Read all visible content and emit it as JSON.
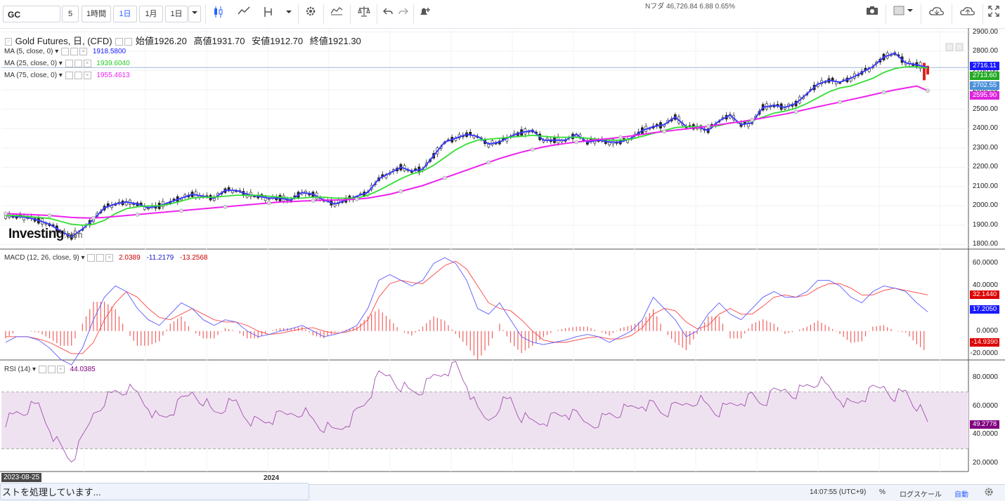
{
  "toolbar": {
    "symbol": "GC",
    "intervals": [
      "5",
      "1時間",
      "1日",
      "1月",
      "1日"
    ],
    "active_interval": 2
  },
  "ticker_top": "Nフダ    46,726.84    6.88    0.65%",
  "legend": {
    "title": "Gold Futures, 日, (CFD)",
    "ohlc": [
      {
        "label": "始値",
        "value": "1926.20"
      },
      {
        "label": "高値",
        "value": "1931.70"
      },
      {
        "label": "安値",
        "value": "1912.70"
      },
      {
        "label": "終値",
        "value": "1921.30"
      }
    ],
    "ma": [
      {
        "name": "MA (5, close, 0)",
        "value": "1918.5800",
        "color": "#1a1aff"
      },
      {
        "name": "MA (25, close, 0)",
        "value": "1939.6040",
        "color": "#22cc22"
      },
      {
        "name": "MA (75, close, 0)",
        "value": "1955.4613",
        "color": "#ee22ee"
      }
    ],
    "macd": {
      "name": "MACD (12, 26, close, 9)",
      "values": [
        "2.0389",
        "-11.2179",
        "-13.2568"
      ],
      "colors": [
        "#cc0000",
        "#1a1acc",
        "#cc0000"
      ]
    },
    "rsi": {
      "name": "RSI (14)",
      "value": "44.0385",
      "color": "#800080"
    }
  },
  "price_axis": [
    "2900.00",
    "2800.00",
    "2700.00",
    "2600.00",
    "2500.00",
    "2400.00",
    "2300.00",
    "2200.00",
    "2100.00",
    "2000.00",
    "1900.00",
    "1800.00"
  ],
  "price_tags": [
    {
      "text": "2716.11",
      "color": "#1a1aff"
    },
    {
      "text": "2713.60",
      "color": "#22aa22"
    },
    {
      "text": "2702.55",
      "color": "#4a90d9"
    },
    {
      "text": "2595.90",
      "color": "#dd22dd"
    }
  ],
  "macd_axis": [
    "60.0000",
    "40.0000",
    "0.0000",
    "-20.0000"
  ],
  "macd_tags": [
    {
      "text": "32.1440",
      "color": "#dd0000"
    },
    {
      "text": "17.2050",
      "color": "#1a1aff"
    },
    {
      "text": "-14.9390",
      "color": "#dd0000"
    }
  ],
  "rsi_axis": [
    "80.0000",
    "60.0000",
    "40.0000",
    "20.0000"
  ],
  "rsi_tag": {
    "text": "49.2778",
    "color": "#800080"
  },
  "x_labels": {
    "start_date": "2023-08-25",
    "year": "2024"
  },
  "watermark": {
    "brand": "Investing",
    "suffix": ".com"
  },
  "status": "ストを処理しています...",
  "bottom": {
    "time": "14:07:55 (UTC+9)",
    "percent": "%",
    "log": "ログスケール",
    "auto": "自動"
  },
  "chart_data": {
    "type": "line",
    "title": "Gold Futures, 日, (CFD)",
    "x_range": [
      "2023-08-25",
      "2024-10"
    ],
    "ylim": [
      1780,
      2920
    ],
    "series": [
      {
        "name": "MA (5, close, 0)",
        "values": [
          1950,
          1945,
          1940,
          1925,
          1905,
          1870,
          1840,
          1880,
          1930,
          1990,
          2010,
          2020,
          2010,
          1990,
          2000,
          2020,
          2040,
          2060,
          2050,
          2040,
          2080,
          2080,
          2060,
          2050,
          2040,
          2040,
          2030,
          2070,
          2060,
          2030,
          2010,
          2030,
          2050,
          2070,
          2140,
          2170,
          2200,
          2180,
          2190,
          2260,
          2330,
          2350,
          2370,
          2360,
          2320,
          2330,
          2360,
          2380,
          2390,
          2340,
          2340,
          2340,
          2370,
          2330,
          2340,
          2330,
          2330,
          2350,
          2390,
          2410,
          2420,
          2460,
          2410,
          2410,
          2390,
          2440,
          2470,
          2420,
          2430,
          2510,
          2520,
          2510,
          2530,
          2580,
          2630,
          2650,
          2640,
          2660,
          2690,
          2720,
          2770,
          2790,
          2740,
          2730,
          2716
        ]
      },
      {
        "name": "MA (25, close, 0)",
        "values": [
          1950,
          1950,
          1945,
          1940,
          1935,
          1920,
          1905,
          1900,
          1905,
          1925,
          1960,
          1985,
          1995,
          2000,
          2000,
          2010,
          2025,
          2040,
          2045,
          2045,
          2050,
          2055,
          2055,
          2055,
          2050,
          2045,
          2040,
          2040,
          2045,
          2045,
          2040,
          2040,
          2040,
          2055,
          2080,
          2110,
          2140,
          2165,
          2180,
          2210,
          2250,
          2290,
          2320,
          2340,
          2345,
          2350,
          2355,
          2360,
          2365,
          2360,
          2355,
          2355,
          2355,
          2350,
          2345,
          2340,
          2340,
          2345,
          2360,
          2375,
          2390,
          2405,
          2410,
          2410,
          2410,
          2415,
          2430,
          2435,
          2440,
          2460,
          2480,
          2490,
          2505,
          2530,
          2560,
          2590,
          2610,
          2620,
          2640,
          2660,
          2690,
          2710,
          2720,
          2720,
          2713
        ]
      },
      {
        "name": "MA (75, close, 0)",
        "values": [
          1960,
          1958,
          1955,
          1953,
          1950,
          1945,
          1940,
          1938,
          1937,
          1940,
          1945,
          1950,
          1955,
          1960,
          1965,
          1970,
          1975,
          1980,
          1985,
          1990,
          1995,
          2000,
          2005,
          2010,
          2015,
          2020,
          2022,
          2025,
          2027,
          2030,
          2030,
          2032,
          2035,
          2040,
          2050,
          2060,
          2075,
          2090,
          2105,
          2125,
          2145,
          2165,
          2185,
          2205,
          2225,
          2245,
          2262,
          2278,
          2292,
          2305,
          2315,
          2323,
          2330,
          2337,
          2343,
          2348,
          2355,
          2362,
          2370,
          2378,
          2385,
          2392,
          2398,
          2405,
          2412,
          2420,
          2428,
          2436,
          2445,
          2455,
          2465,
          2475,
          2487,
          2500,
          2513,
          2525,
          2537,
          2550,
          2562,
          2575,
          2588,
          2600,
          2610,
          2620,
          2596
        ]
      }
    ],
    "macd": {
      "lines": [
        {
          "name": "MACD",
          "values": [
            -10,
            -5,
            -5,
            -8,
            -15,
            -25,
            -30,
            -15,
            10,
            30,
            40,
            35,
            20,
            10,
            5,
            15,
            25,
            20,
            10,
            5,
            10,
            8,
            0,
            -5,
            -3,
            0,
            2,
            5,
            0,
            -5,
            -3,
            0,
            5,
            20,
            45,
            50,
            45,
            40,
            45,
            60,
            65,
            60,
            45,
            20,
            15,
            25,
            10,
            -5,
            -10,
            -12,
            -10,
            -8,
            -5,
            -3,
            -5,
            -10,
            -5,
            0,
            10,
            30,
            20,
            10,
            -5,
            0,
            15,
            25,
            15,
            10,
            20,
            30,
            35,
            30,
            30,
            35,
            45,
            45,
            40,
            30,
            25,
            35,
            40,
            38,
            35,
            25,
            17
          ]
        },
        {
          "name": "Signal",
          "values": [
            -5,
            -5,
            -5,
            -7,
            -10,
            -15,
            -20,
            -20,
            -10,
            10,
            25,
            35,
            30,
            20,
            12,
            10,
            15,
            20,
            15,
            10,
            8,
            8,
            5,
            0,
            -3,
            -2,
            0,
            2,
            3,
            0,
            -2,
            -1,
            2,
            10,
            30,
            42,
            45,
            43,
            42,
            50,
            58,
            62,
            55,
            40,
            25,
            20,
            18,
            10,
            0,
            -8,
            -10,
            -10,
            -8,
            -6,
            -5,
            -7,
            -7,
            -4,
            3,
            15,
            20,
            18,
            8,
            2,
            5,
            15,
            20,
            15,
            15,
            22,
            30,
            32,
            30,
            32,
            38,
            42,
            42,
            38,
            32,
            32,
            36,
            38,
            36,
            34,
            32
          ]
        }
      ]
    },
    "rsi": {
      "values": [
        50,
        55,
        58,
        60,
        45,
        30,
        22,
        35,
        55,
        65,
        70,
        72,
        68,
        60,
        50,
        55,
        62,
        70,
        65,
        55,
        60,
        62,
        52,
        48,
        50,
        52,
        55,
        58,
        50,
        45,
        42,
        48,
        55,
        65,
        80,
        82,
        75,
        70,
        72,
        80,
        85,
        88,
        75,
        55,
        50,
        62,
        65,
        52,
        48,
        50,
        52,
        55,
        52,
        48,
        50,
        54,
        56,
        58,
        62,
        60,
        55,
        58,
        62,
        66,
        60,
        56,
        60,
        64,
        66,
        62,
        68,
        72,
        70,
        74,
        78,
        72,
        66,
        60,
        65,
        70,
        74,
        68,
        70,
        60,
        49
      ]
    }
  }
}
